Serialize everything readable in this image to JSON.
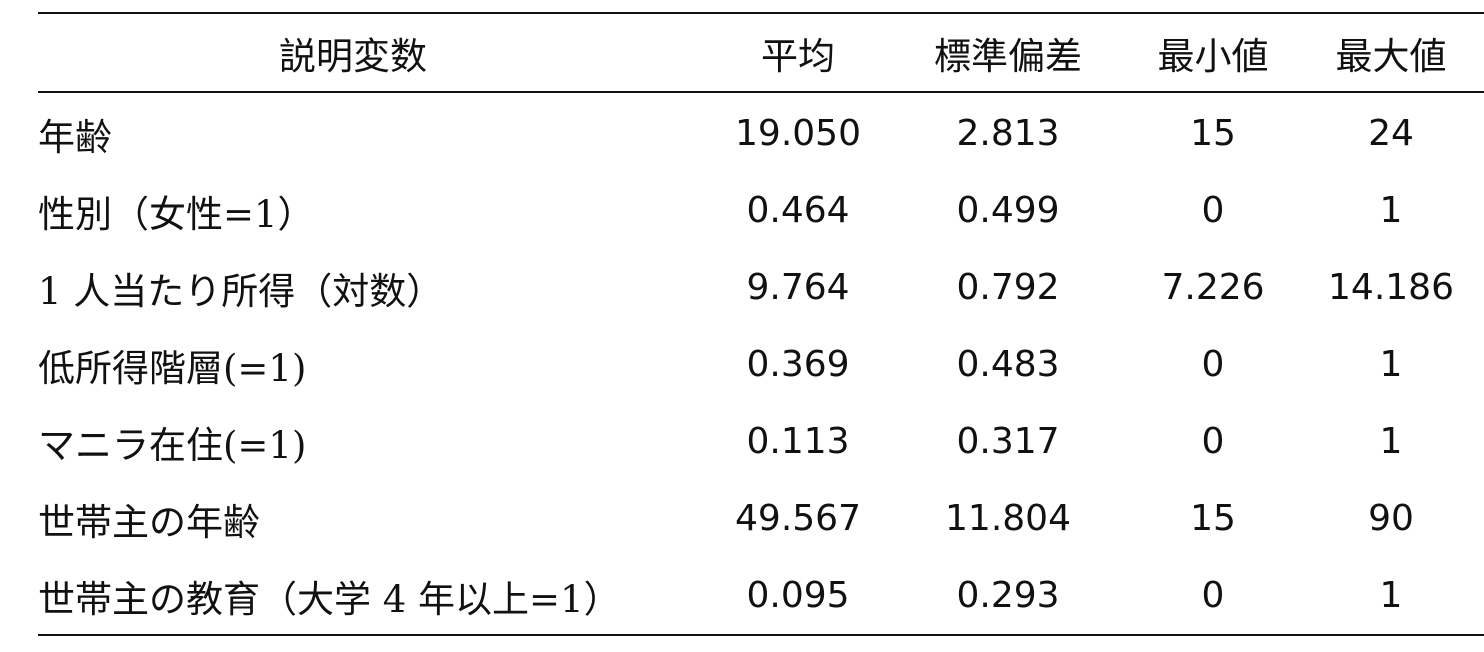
{
  "table": {
    "headers": [
      "説明変数",
      "平均",
      "標準偏差",
      "最小値",
      "最大値"
    ],
    "rows": [
      {
        "label": "年齢",
        "mean": "19.050",
        "sd": "2.813",
        "min": "15",
        "max": "24"
      },
      {
        "label": "性別（女性=1）",
        "mean": "0.464",
        "sd": "0.499",
        "min": "0",
        "max": "1"
      },
      {
        "label": "1 人当たり所得（対数）",
        "mean": "9.764",
        "sd": "0.792",
        "min": "7.226",
        "max": "14.186"
      },
      {
        "label": "低所得階層(=1)",
        "mean": "0.369",
        "sd": "0.483",
        "min": "0",
        "max": "1"
      },
      {
        "label": "マニラ在住(=1)",
        "mean": "0.113",
        "sd": "0.317",
        "min": "0",
        "max": "1"
      },
      {
        "label": "世帯主の年齢",
        "mean": "49.567",
        "sd": "11.804",
        "min": "15",
        "max": "90"
      },
      {
        "label": "世帯主の教育（大学 4 年以上=1）",
        "mean": "0.095",
        "sd": "0.293",
        "min": "0",
        "max": "1"
      }
    ]
  }
}
